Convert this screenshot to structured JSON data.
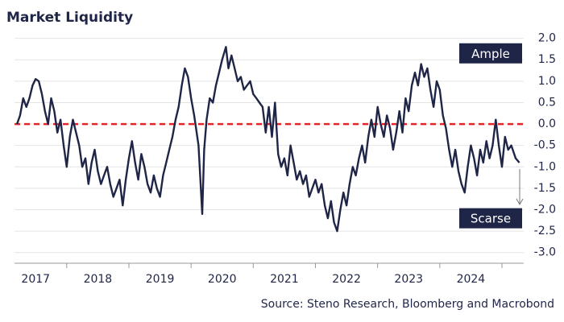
{
  "chart_data": {
    "type": "line",
    "title": "Market Liquidity",
    "source": "Source: Steno Research, Bloomberg and Macrobond",
    "annotations": [
      {
        "text": "Ample",
        "y": 1.65
      },
      {
        "text": "Scarse",
        "y": -2.2
      }
    ],
    "color": "#1f2547",
    "reference_line": {
      "value": 0,
      "color": "#e0252b",
      "style": "dashed"
    },
    "grid": true,
    "xlim": [
      2017.16,
      2025.35
    ],
    "xticks": [
      2018,
      2019,
      2020,
      2021,
      2022,
      2023,
      2024,
      2025
    ],
    "x_labels": [
      {
        "value": 2017.5,
        "label": "2017"
      },
      {
        "value": 2018.5,
        "label": "2018"
      },
      {
        "value": 2019.5,
        "label": "2019"
      },
      {
        "value": 2020.5,
        "label": "2020"
      },
      {
        "value": 2021.5,
        "label": "2021"
      },
      {
        "value": 2022.5,
        "label": "2022"
      },
      {
        "value": 2023.5,
        "label": "2023"
      },
      {
        "value": 2024.5,
        "label": "2024"
      }
    ],
    "ylim": [
      -3.25,
      2.2
    ],
    "yticks": [
      {
        "value": 2,
        "label": "2.0"
      },
      1.5,
      {
        "value": 1,
        "label": "1.0"
      },
      0.5,
      {
        "value": 0,
        "label": "0.0"
      },
      -0.5,
      {
        "value": -1,
        "label": "-1.0"
      },
      -1.5,
      {
        "value": -2,
        "label": "-2.0"
      },
      -2.5,
      {
        "value": -3,
        "label": "-3.0"
      }
    ],
    "x": [
      2017.2,
      2017.25,
      2017.3,
      2017.35,
      2017.4,
      2017.45,
      2017.5,
      2017.55,
      2017.6,
      2017.65,
      2017.7,
      2017.75,
      2017.8,
      2017.85,
      2017.9,
      2017.95,
      2018.0,
      2018.05,
      2018.1,
      2018.15,
      2018.2,
      2018.25,
      2018.3,
      2018.35,
      2018.4,
      2018.45,
      2018.5,
      2018.55,
      2018.6,
      2018.65,
      2018.7,
      2018.75,
      2018.8,
      2018.85,
      2018.9,
      2018.95,
      2019.0,
      2019.05,
      2019.1,
      2019.15,
      2019.2,
      2019.25,
      2019.3,
      2019.35,
      2019.4,
      2019.45,
      2019.5,
      2019.55,
      2019.6,
      2019.65,
      2019.7,
      2019.75,
      2019.8,
      2019.85,
      2019.9,
      2019.95,
      2020.0,
      2020.05,
      2020.12,
      2020.18,
      2020.21,
      2020.25,
      2020.3,
      2020.35,
      2020.4,
      2020.45,
      2020.5,
      2020.56,
      2020.6,
      2020.65,
      2020.7,
      2020.75,
      2020.8,
      2020.85,
      2020.9,
      2020.95,
      2021.0,
      2021.05,
      2021.1,
      2021.15,
      2021.2,
      2021.25,
      2021.3,
      2021.35,
      2021.4,
      2021.45,
      2021.5,
      2021.55,
      2021.6,
      2021.65,
      2021.7,
      2021.75,
      2021.8,
      2021.85,
      2021.9,
      2021.95,
      2022.0,
      2022.05,
      2022.1,
      2022.15,
      2022.2,
      2022.25,
      2022.3,
      2022.35,
      2022.4,
      2022.45,
      2022.5,
      2022.55,
      2022.6,
      2022.65,
      2022.7,
      2022.75,
      2022.8,
      2022.85,
      2022.9,
      2022.95,
      2023.0,
      2023.05,
      2023.1,
      2023.15,
      2023.2,
      2023.25,
      2023.3,
      2023.35,
      2023.4,
      2023.45,
      2023.5,
      2023.55,
      2023.6,
      2023.65,
      2023.7,
      2023.75,
      2023.8,
      2023.85,
      2023.9,
      2023.95,
      2024.0,
      2024.05,
      2024.1,
      2024.15,
      2024.2,
      2024.25,
      2024.3,
      2024.35,
      2024.4,
      2024.45,
      2024.5,
      2024.55,
      2024.6,
      2024.65,
      2024.7,
      2024.75,
      2024.8,
      2024.85,
      2024.9,
      2024.95,
      2025.0,
      2025.05,
      2025.1,
      2025.15,
      2025.22,
      2025.28
    ],
    "values": [
      0.0,
      0.2,
      0.6,
      0.4,
      0.6,
      0.9,
      1.05,
      1.0,
      0.7,
      0.3,
      0.0,
      0.6,
      0.3,
      -0.2,
      0.1,
      -0.5,
      -1.0,
      -0.3,
      0.1,
      -0.2,
      -0.5,
      -1.0,
      -0.8,
      -1.4,
      -0.9,
      -0.6,
      -1.1,
      -1.4,
      -1.2,
      -1.0,
      -1.4,
      -1.7,
      -1.5,
      -1.3,
      -1.9,
      -1.3,
      -0.8,
      -0.4,
      -0.9,
      -1.3,
      -0.7,
      -1.0,
      -1.4,
      -1.6,
      -1.2,
      -1.5,
      -1.7,
      -1.2,
      -0.9,
      -0.6,
      -0.3,
      0.1,
      0.4,
      0.9,
      1.3,
      1.1,
      0.6,
      0.2,
      -0.5,
      -2.1,
      -0.6,
      0.1,
      0.6,
      0.5,
      0.9,
      1.2,
      1.5,
      1.8,
      1.3,
      1.6,
      1.3,
      1.0,
      1.1,
      0.8,
      0.9,
      1.0,
      0.7,
      0.6,
      0.5,
      0.4,
      -0.2,
      0.4,
      -0.3,
      0.5,
      -0.7,
      -1.0,
      -0.8,
      -1.2,
      -0.5,
      -0.9,
      -1.3,
      -1.1,
      -1.4,
      -1.2,
      -1.7,
      -1.5,
      -1.3,
      -1.6,
      -1.4,
      -1.9,
      -2.2,
      -1.8,
      -2.3,
      -2.5,
      -2.0,
      -1.6,
      -1.9,
      -1.4,
      -1.0,
      -1.2,
      -0.8,
      -0.5,
      -0.9,
      -0.3,
      0.1,
      -0.3,
      0.4,
      0.0,
      -0.3,
      0.2,
      -0.1,
      -0.6,
      -0.2,
      0.3,
      -0.2,
      0.6,
      0.3,
      0.9,
      1.2,
      0.9,
      1.4,
      1.1,
      1.3,
      0.8,
      0.4,
      1.0,
      0.8,
      0.2,
      -0.1,
      -0.6,
      -1.0,
      -0.6,
      -1.1,
      -1.4,
      -1.6,
      -1.0,
      -0.5,
      -0.8,
      -1.2,
      -0.6,
      -0.9,
      -0.4,
      -0.8,
      -0.5,
      0.1,
      -0.5,
      -1.0,
      -0.3,
      -0.6,
      -0.5,
      -0.8,
      -0.9
    ]
  }
}
